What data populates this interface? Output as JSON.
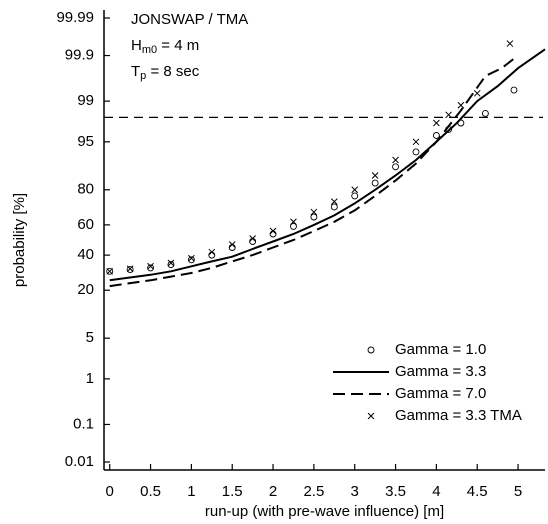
{
  "chart_data": {
    "type": "probability",
    "y_scale": "normal-probability",
    "annotations": [
      {
        "base": "JONSWAP / TMA"
      },
      {
        "base": "H",
        "sub": "m0",
        "rest": " = 4 m"
      },
      {
        "base": "T",
        "sub": "p",
        "rest": " = 8 sec"
      }
    ],
    "x_label": "run-up (with pre-wave influence) [m]",
    "y_label": "probability [%]",
    "xlim": [
      -0.07,
      5.33
    ],
    "xticks": [
      0,
      0.5,
      1,
      1.5,
      2,
      2.5,
      3,
      3.5,
      4,
      4.5,
      5
    ],
    "ylim": [
      0.01,
      99.99
    ],
    "yticks": [
      0.01,
      0.1,
      1,
      5,
      20,
      40,
      60,
      80,
      95,
      99,
      99.9,
      99.99
    ],
    "reference_line": 98,
    "legend": "lower right",
    "series": [
      {
        "name": "Gamma = 1.0",
        "color": "#000000",
        "marker": "circle",
        "line": "none",
        "x": [
          0,
          0.25,
          0.5,
          0.75,
          1,
          1.25,
          1.5,
          1.75,
          2,
          2.25,
          2.5,
          2.75,
          3,
          3.25,
          3.5,
          3.75,
          4,
          4.15,
          4.3,
          4.6,
          4.95
        ],
        "values": [
          30,
          31,
          32,
          34,
          37,
          40,
          45,
          49,
          54,
          59,
          65,
          71,
          77,
          83,
          89,
          93,
          96,
          96.8,
          97.5,
          98.3,
          99.4
        ]
      },
      {
        "name": "Gamma = 3.3",
        "color": "#000000",
        "marker": "none",
        "line": "solid",
        "x": [
          0,
          0.25,
          0.5,
          0.75,
          1,
          1.25,
          1.5,
          1.75,
          2,
          2.25,
          2.5,
          2.75,
          3,
          3.25,
          3.5,
          3.75,
          4,
          4.25,
          4.5,
          4.75,
          5,
          5.33
        ],
        "values": [
          25,
          26.5,
          28,
          30,
          33,
          36,
          39,
          44,
          49,
          54,
          60,
          66,
          73,
          80,
          86,
          91,
          95,
          97.5,
          99,
          99.5,
          99.8,
          99.93
        ]
      },
      {
        "name": "Gamma = 7.0",
        "color": "#000000",
        "marker": "none",
        "line": "dashed",
        "x": [
          0,
          0.25,
          0.5,
          0.75,
          1,
          1.25,
          1.5,
          1.75,
          2,
          2.25,
          2.5,
          2.75,
          3,
          3.25,
          3.5,
          3.75,
          4,
          4.3,
          4.6,
          4.8,
          5
        ],
        "values": [
          22,
          23.5,
          25,
          27,
          29,
          32,
          36,
          40,
          45,
          50,
          56,
          62,
          69,
          77,
          84,
          90,
          95,
          98.5,
          99.7,
          99.8,
          99.9
        ]
      },
      {
        "name": "Gamma = 3.3 TMA",
        "color": "#000000",
        "marker": "x",
        "line": "none",
        "x": [
          0,
          0.25,
          0.5,
          0.75,
          1,
          1.25,
          1.5,
          1.75,
          2,
          2.25,
          2.5,
          2.75,
          3,
          3.25,
          3.5,
          3.75,
          4,
          4.15,
          4.3,
          4.5,
          4.9
        ],
        "values": [
          30,
          31.5,
          33,
          35,
          38,
          42,
          47,
          51,
          56,
          62,
          68,
          74,
          80,
          86,
          91,
          95,
          97.5,
          98.2,
          98.8,
          99.3,
          99.95
        ]
      }
    ]
  }
}
